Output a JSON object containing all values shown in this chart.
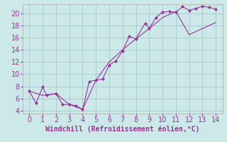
{
  "title": "",
  "xlabel": "Windchill (Refroidissement éolien,°C)",
  "ylabel": "",
  "background_color": "#cce8e8",
  "grid_color": "#aacccc",
  "line_color": "#993399",
  "marker_color": "#993399",
  "xlim": [
    -0.5,
    14.5
  ],
  "ylim": [
    3.5,
    21.5
  ],
  "xticks": [
    0,
    1,
    2,
    3,
    4,
    5,
    6,
    7,
    8,
    9,
    10,
    11,
    12,
    13,
    14
  ],
  "yticks": [
    4,
    6,
    8,
    10,
    12,
    14,
    16,
    18,
    20
  ],
  "series1_x": [
    0,
    0.5,
    1,
    1.3,
    2,
    2.5,
    3,
    3.5,
    4,
    4.5,
    5,
    5.5,
    6,
    6.5,
    7,
    7.5,
    8,
    8.7,
    9,
    9.5,
    10,
    10.5,
    11,
    11.5,
    12,
    12.5,
    13,
    13.5,
    14
  ],
  "series1_y": [
    7.2,
    5.2,
    7.9,
    6.5,
    6.8,
    5.0,
    5.0,
    4.8,
    4.2,
    8.8,
    9.0,
    9.2,
    11.5,
    12.2,
    13.8,
    16.2,
    15.8,
    18.4,
    17.5,
    19.3,
    20.2,
    20.3,
    20.2,
    21.1,
    20.5,
    20.8,
    21.2,
    21.0,
    20.7
  ],
  "series2_x": [
    0,
    1,
    2,
    3,
    4,
    5,
    6,
    7,
    8,
    9,
    10,
    11,
    12,
    13,
    14
  ],
  "series2_y": [
    7.2,
    6.5,
    6.8,
    5.0,
    4.2,
    9.0,
    12.0,
    14.0,
    15.8,
    17.5,
    19.3,
    20.3,
    16.5,
    17.5,
    18.5
  ],
  "font_size": 7,
  "tick_font_size": 7,
  "label_font_family": "monospace"
}
